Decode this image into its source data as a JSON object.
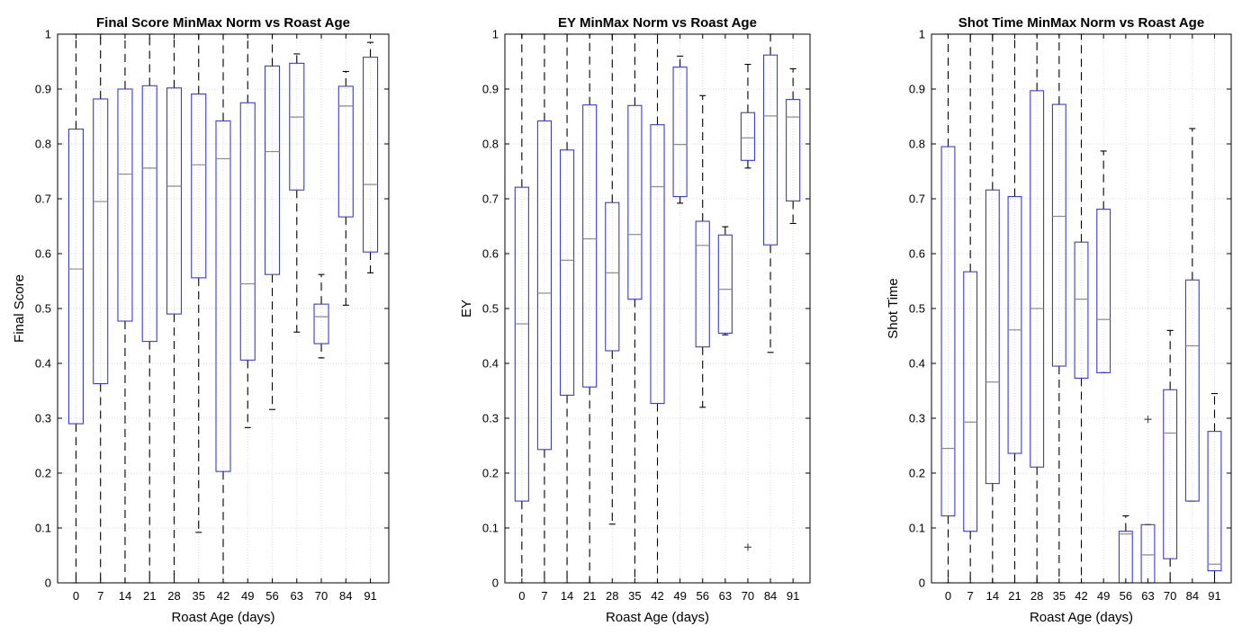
{
  "chart_data": [
    {
      "type": "box",
      "title": "Final Score  MinMax Norm vs Roast Age",
      "xlabel": "Roast Age (days)",
      "ylabel": "Final Score",
      "ylim": [
        0,
        1
      ],
      "yticks": [
        0,
        0.1,
        0.2,
        0.3,
        0.4,
        0.5,
        0.6,
        0.7,
        0.8,
        0.9,
        1
      ],
      "ytick_labels": [
        "0",
        "0.1",
        "0.2",
        "0.3",
        "0.4",
        "0.5",
        "0.6",
        "0.7",
        "0.8",
        "0.9",
        "1"
      ],
      "categories": [
        "0",
        "7",
        "14",
        "21",
        "28",
        "35",
        "42",
        "49",
        "56",
        "63",
        "70",
        "84",
        "91"
      ],
      "grid": true,
      "boxes": [
        {
          "min": 0,
          "q1": 0.29,
          "median": 0.572,
          "q3": 0.827,
          "max": 1.0,
          "outliers": []
        },
        {
          "min": 0,
          "q1": 0.363,
          "median": 0.695,
          "q3": 0.882,
          "max": 1.0,
          "outliers": []
        },
        {
          "min": 0,
          "q1": 0.477,
          "median": 0.745,
          "q3": 0.9,
          "max": 1.0,
          "outliers": []
        },
        {
          "min": 0,
          "q1": 0.44,
          "median": 0.756,
          "q3": 0.906,
          "max": 1.0,
          "outliers": []
        },
        {
          "min": 0,
          "q1": 0.49,
          "median": 0.723,
          "q3": 0.902,
          "max": 1.0,
          "outliers": []
        },
        {
          "min": 0.092,
          "q1": 0.556,
          "median": 0.762,
          "q3": 0.891,
          "max": 1.0,
          "outliers": []
        },
        {
          "min": 0,
          "q1": 0.203,
          "median": 0.773,
          "q3": 0.842,
          "max": 1.0,
          "outliers": []
        },
        {
          "min": 0.283,
          "q1": 0.406,
          "median": 0.545,
          "q3": 0.875,
          "max": 1.0,
          "outliers": []
        },
        {
          "min": 0.316,
          "q1": 0.562,
          "median": 0.786,
          "q3": 0.942,
          "max": 1.0,
          "outliers": []
        },
        {
          "min": 0.457,
          "q1": 0.716,
          "median": 0.849,
          "q3": 0.947,
          "max": 0.964,
          "outliers": []
        },
        {
          "min": 0.41,
          "q1": 0.436,
          "median": 0.485,
          "q3": 0.508,
          "max": 0.562,
          "outliers": []
        },
        {
          "min": 0.506,
          "q1": 0.667,
          "median": 0.869,
          "q3": 0.905,
          "max": 0.932,
          "outliers": []
        },
        {
          "min": 0.565,
          "q1": 0.603,
          "median": 0.726,
          "q3": 0.958,
          "max": 0.985,
          "outliers": []
        }
      ]
    },
    {
      "type": "box",
      "title": "EY  MinMax Norm vs Roast Age",
      "xlabel": "Roast Age (days)",
      "ylabel": "EY",
      "ylim": [
        0,
        1
      ],
      "yticks": [
        0,
        0.1,
        0.2,
        0.3,
        0.4,
        0.5,
        0.6,
        0.7,
        0.8,
        0.9,
        1
      ],
      "ytick_labels": [
        "0",
        "0.1",
        "0.2",
        "0.3",
        "0.4",
        "0.5",
        "0.6",
        "0.7",
        "0.8",
        "0.9",
        "1"
      ],
      "categories": [
        "0",
        "7",
        "14",
        "21",
        "28",
        "35",
        "42",
        "49",
        "56",
        "63",
        "70",
        "84",
        "91"
      ],
      "grid": true,
      "boxes": [
        {
          "min": 0,
          "q1": 0.149,
          "median": 0.472,
          "q3": 0.721,
          "max": 1.0,
          "outliers": []
        },
        {
          "min": 0,
          "q1": 0.243,
          "median": 0.528,
          "q3": 0.842,
          "max": 1.0,
          "outliers": []
        },
        {
          "min": 0,
          "q1": 0.342,
          "median": 0.588,
          "q3": 0.789,
          "max": 1.0,
          "outliers": []
        },
        {
          "min": 0,
          "q1": 0.357,
          "median": 0.627,
          "q3": 0.871,
          "max": 1.0,
          "outliers": []
        },
        {
          "min": 0.107,
          "q1": 0.423,
          "median": 0.565,
          "q3": 0.693,
          "max": 1.0,
          "outliers": []
        },
        {
          "min": 0,
          "q1": 0.517,
          "median": 0.635,
          "q3": 0.87,
          "max": 1.0,
          "outliers": []
        },
        {
          "min": 0,
          "q1": 0.327,
          "median": 0.722,
          "q3": 0.835,
          "max": 1.0,
          "outliers": []
        },
        {
          "min": 0.692,
          "q1": 0.704,
          "median": 0.799,
          "q3": 0.94,
          "max": 0.96,
          "outliers": []
        },
        {
          "min": 0.32,
          "q1": 0.43,
          "median": 0.615,
          "q3": 0.659,
          "max": 0.888,
          "outliers": []
        },
        {
          "min": 0.452,
          "q1": 0.455,
          "median": 0.535,
          "q3": 0.634,
          "max": 0.649,
          "outliers": []
        },
        {
          "min": 0.756,
          "q1": 0.77,
          "median": 0.811,
          "q3": 0.857,
          "max": 0.945,
          "outliers": [
            0.065
          ]
        },
        {
          "min": 0.42,
          "q1": 0.616,
          "median": 0.851,
          "q3": 0.962,
          "max": 1.0,
          "outliers": []
        },
        {
          "min": 0.655,
          "q1": 0.696,
          "median": 0.849,
          "q3": 0.881,
          "max": 0.937,
          "outliers": []
        }
      ]
    },
    {
      "type": "box",
      "title": "Shot Time  MinMax Norm vs Roast Age",
      "xlabel": "Roast Age (days)",
      "ylabel": "Shot Time",
      "ylim": [
        0,
        1
      ],
      "yticks": [
        0,
        0.1,
        0.2,
        0.3,
        0.4,
        0.5,
        0.6,
        0.7,
        0.8,
        0.9,
        1
      ],
      "ytick_labels": [
        "0",
        "0.1",
        "0.2",
        "0.3",
        "0.4",
        "0.5",
        "0.6",
        "0.7",
        "0.8",
        "0.9",
        "1"
      ],
      "categories": [
        "0",
        "7",
        "14",
        "21",
        "28",
        "35",
        "42",
        "49",
        "56",
        "63",
        "70",
        "84",
        "91"
      ],
      "grid": true,
      "boxes": [
        {
          "min": 0,
          "q1": 0.122,
          "median": 0.245,
          "q3": 0.795,
          "max": 1.0,
          "outliers": []
        },
        {
          "min": 0,
          "q1": 0.094,
          "median": 0.293,
          "q3": 0.567,
          "max": 1.0,
          "outliers": []
        },
        {
          "min": 0,
          "q1": 0.181,
          "median": 0.366,
          "q3": 0.716,
          "max": 1.0,
          "outliers": []
        },
        {
          "min": 0,
          "q1": 0.236,
          "median": 0.461,
          "q3": 0.704,
          "max": 1.0,
          "outliers": []
        },
        {
          "min": 0,
          "q1": 0.211,
          "median": 0.5,
          "q3": 0.897,
          "max": 1.0,
          "outliers": []
        },
        {
          "min": 0,
          "q1": 0.395,
          "median": 0.668,
          "q3": 0.872,
          "max": 1.0,
          "outliers": []
        },
        {
          "min": 0,
          "q1": 0.373,
          "median": 0.517,
          "q3": 0.621,
          "max": 1.0,
          "outliers": []
        },
        {
          "min": 0.383,
          "q1": 0.383,
          "median": 0.48,
          "q3": 0.681,
          "max": 0.787,
          "outliers": []
        },
        {
          "min": 0,
          "q1": 0,
          "median": 0.089,
          "q3": 0.094,
          "max": 0.122,
          "outliers": []
        },
        {
          "min": 0,
          "q1": 0,
          "median": 0.051,
          "q3": 0.106,
          "max": 0.106,
          "outliers": [
            0.298
          ]
        },
        {
          "min": 0,
          "q1": 0.044,
          "median": 0.273,
          "q3": 0.352,
          "max": 0.46,
          "outliers": []
        },
        {
          "min": 0.149,
          "q1": 0.149,
          "median": 0.432,
          "q3": 0.552,
          "max": 0.828,
          "outliers": []
        },
        {
          "min": 0,
          "q1": 0.022,
          "median": 0.034,
          "q3": 0.276,
          "max": 0.345,
          "outliers": []
        }
      ]
    }
  ]
}
